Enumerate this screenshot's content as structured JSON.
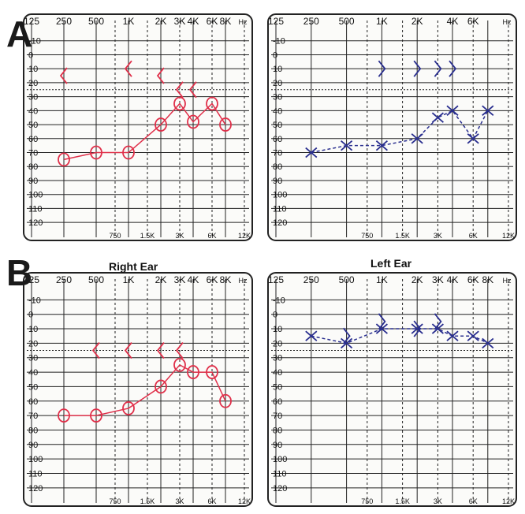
{
  "panels": [
    {
      "label": "A",
      "right_title": "",
      "left_title": ""
    },
    {
      "label": "B",
      "right_title": "Right Ear",
      "left_title": "Left Ear"
    }
  ],
  "colors": {
    "right_ear": "#e0304a",
    "left_ear": "#2a2f8f",
    "grid": "#222222",
    "paper": "#fbfbf9"
  },
  "chart_data": [
    {
      "type": "line",
      "panel": "A",
      "ear": "right",
      "xlabel": "Hz",
      "freq_labels_top": [
        "125",
        "250",
        "500",
        "1K",
        "2K",
        "3K",
        "4K",
        "6K",
        "8K"
      ],
      "freq_labels_bottom": [
        "750",
        "1.5K",
        "3K",
        "6K",
        "12K"
      ],
      "y_ticks": [
        -10,
        0,
        10,
        20,
        30,
        40,
        50,
        60,
        70,
        80,
        90,
        100,
        110,
        120
      ],
      "ylim": [
        -20,
        125
      ],
      "y_inverted": true,
      "series": [
        {
          "symbol": "O",
          "kind": "air-conduction",
          "x": [
            250,
            500,
            1000,
            2000,
            3000,
            4000,
            6000,
            8000
          ],
          "y": [
            75,
            70,
            70,
            50,
            35,
            48,
            35,
            50
          ]
        },
        {
          "symbol": "<",
          "kind": "bone-conduction",
          "x": [
            250,
            1000,
            2000,
            3000,
            4000
          ],
          "y": [
            15,
            10,
            15,
            25,
            25
          ]
        }
      ]
    },
    {
      "type": "line",
      "panel": "A",
      "ear": "left",
      "xlabel": "Hz",
      "freq_labels_top": [
        "125",
        "250",
        "500",
        "1K",
        "2K",
        "4K",
        "6K"
      ],
      "freq_labels_bottom": [
        "750",
        "1.5K",
        "3K",
        "6K",
        "12K"
      ],
      "y_ticks": [
        -10,
        0,
        10,
        20,
        30,
        40,
        50,
        60,
        70,
        80,
        90,
        100,
        110,
        120
      ],
      "ylim": [
        -20,
        125
      ],
      "y_inverted": true,
      "series": [
        {
          "symbol": "X",
          "kind": "air-conduction",
          "x": [
            250,
            500,
            1000,
            2000,
            3000,
            4000,
            6000,
            8000
          ],
          "y": [
            70,
            65,
            65,
            60,
            45,
            40,
            60,
            40
          ]
        },
        {
          "symbol": ">",
          "kind": "bone-conduction",
          "x": [
            1000,
            2000,
            3000,
            4000
          ],
          "y": [
            10,
            10,
            10,
            10
          ]
        }
      ]
    },
    {
      "type": "line",
      "panel": "B",
      "ear": "right",
      "xlabel": "Hz",
      "freq_labels_top": [
        "125",
        "250",
        "500",
        "1K",
        "2K",
        "3K",
        "4K",
        "6K",
        "8K"
      ],
      "freq_labels_bottom": [
        "750",
        "1.5K",
        "3K",
        "6K",
        "12K"
      ],
      "y_ticks": [
        -10,
        0,
        10,
        20,
        30,
        40,
        50,
        60,
        70,
        80,
        90,
        100,
        110,
        120
      ],
      "ylim": [
        -20,
        125
      ],
      "y_inverted": true,
      "series": [
        {
          "symbol": "O",
          "kind": "air-conduction",
          "x": [
            250,
            500,
            1000,
            2000,
            3000,
            4000,
            6000,
            8000
          ],
          "y": [
            70,
            70,
            65,
            50,
            35,
            40,
            40,
            60
          ]
        },
        {
          "symbol": "<",
          "kind": "bone-conduction",
          "x": [
            500,
            1000,
            2000,
            3000
          ],
          "y": [
            25,
            25,
            25,
            25
          ]
        }
      ]
    },
    {
      "type": "line",
      "panel": "B",
      "ear": "left",
      "xlabel": "Hz",
      "freq_labels_top": [
        "125",
        "250",
        "500",
        "1K",
        "2K",
        "3K",
        "4K",
        "6K",
        "8K"
      ],
      "freq_labels_bottom": [
        "750",
        "1.5K",
        "3K",
        "6K",
        "12K"
      ],
      "y_ticks": [
        -10,
        0,
        10,
        20,
        30,
        40,
        50,
        60,
        70,
        80,
        90,
        100,
        110,
        120
      ],
      "ylim": [
        -20,
        125
      ],
      "y_inverted": true,
      "series": [
        {
          "symbol": "X",
          "kind": "air-conduction",
          "x": [
            250,
            500,
            1000,
            2000,
            3000,
            4000,
            6000,
            8000
          ],
          "y": [
            15,
            20,
            10,
            10,
            10,
            15,
            15,
            20
          ]
        },
        {
          "symbol": ">",
          "kind": "bone-conduction",
          "x": [
            500,
            1000,
            2000,
            3000
          ],
          "y": [
            15,
            5,
            10,
            5
          ]
        }
      ]
    }
  ]
}
